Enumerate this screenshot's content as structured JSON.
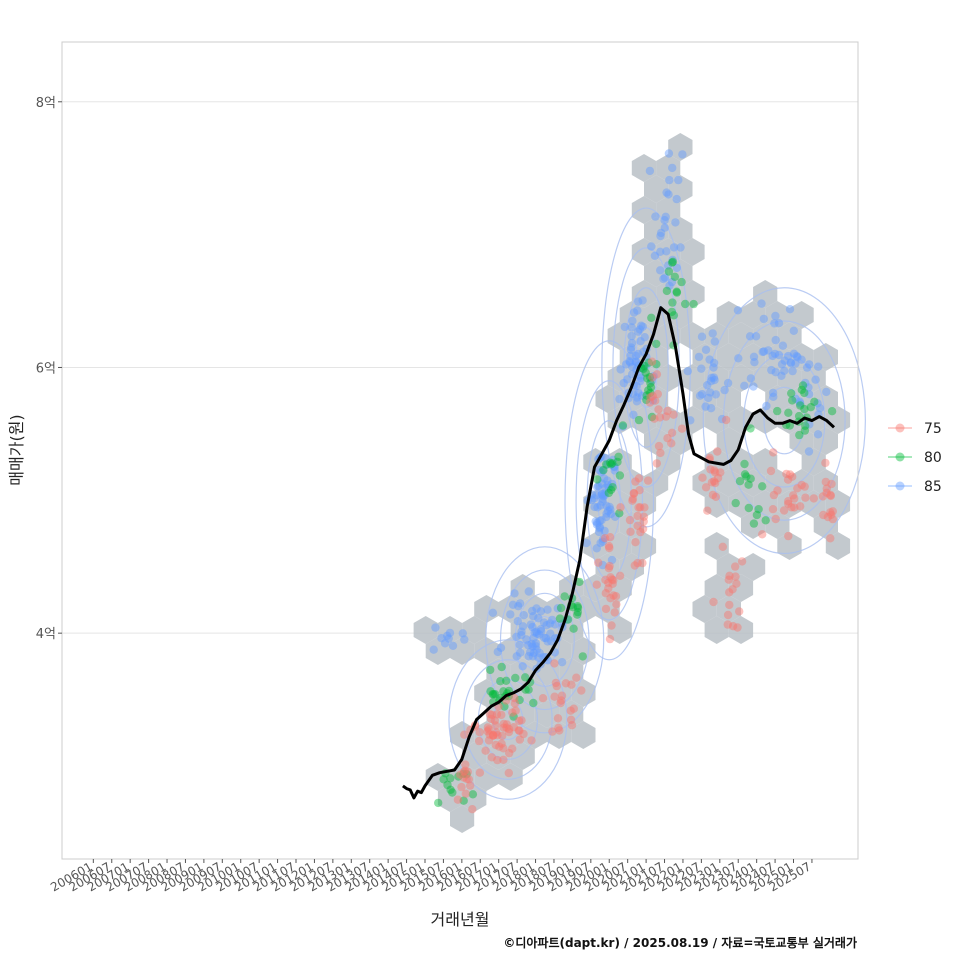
{
  "chart_data": {
    "type": "scatter",
    "title": "",
    "xlabel": "거래년월",
    "ylabel": "매매가(원)",
    "caption": "©디아파트(dapt.kr) / 2025.08.19 / 자료=국토교통부 실거래가",
    "x_ticks": [
      "200601",
      "200607",
      "200701",
      "200707",
      "200801",
      "200807",
      "200901",
      "200907",
      "201001",
      "201007",
      "201101",
      "201107",
      "201201",
      "201207",
      "201301",
      "201307",
      "201401",
      "201407",
      "201501",
      "201507",
      "201601",
      "201607",
      "201701",
      "201707",
      "201801",
      "201807",
      "201901",
      "201907",
      "202001",
      "202007",
      "202101",
      "202107",
      "202201",
      "202207",
      "202301",
      "202307",
      "202401",
      "202407",
      "202501",
      "202507"
    ],
    "y_ticks": [
      {
        "label": "4억",
        "value": 4
      },
      {
        "label": "6억",
        "value": 6
      },
      {
        "label": "8억",
        "value": 8
      }
    ],
    "ylim": [
      2.3,
      8.45
    ],
    "xlim_index": [
      -1.7,
      41.5
    ],
    "legend": {
      "position": "right",
      "entries": [
        {
          "label": "75",
          "color": "#F8766D"
        },
        {
          "label": "80",
          "color": "#00BA38"
        },
        {
          "label": "85",
          "color": "#619CFF"
        }
      ]
    },
    "colors": {
      "hex": "#b8bfc6",
      "contour": "#a9bff0",
      "median_line": "#000000",
      "grid": "#e5e5e5",
      "border": "#cccccc"
    },
    "median_trend": {
      "x": [
        16.8,
        17.0,
        17.2,
        17.4,
        17.6,
        17.8,
        18.0,
        18.4,
        18.8,
        19.2,
        19.6,
        20.0,
        20.4,
        20.8,
        21.2,
        21.6,
        22.0,
        22.4,
        22.8,
        23.2,
        23.6,
        24.0,
        24.4,
        24.8,
        25.2,
        25.6,
        26.0,
        26.4,
        26.8,
        27.2,
        27.6,
        28.0,
        28.4,
        28.8,
        29.2,
        29.6,
        30.0,
        30.4,
        30.8,
        31.2,
        31.6,
        32.0,
        32.3,
        32.6,
        33.0,
        33.4,
        33.8,
        34.2,
        34.6,
        35.0,
        35.4,
        35.8,
        36.2,
        36.6,
        37.0,
        37.4,
        37.8,
        38.2,
        38.6,
        39.0,
        39.4,
        39.8,
        40.2
      ],
      "y": [
        2.85,
        2.83,
        2.82,
        2.76,
        2.81,
        2.8,
        2.85,
        2.93,
        2.95,
        2.96,
        2.97,
        3.05,
        3.22,
        3.35,
        3.4,
        3.45,
        3.48,
        3.53,
        3.55,
        3.58,
        3.63,
        3.72,
        3.78,
        3.85,
        3.95,
        4.1,
        4.3,
        4.55,
        4.95,
        5.25,
        5.35,
        5.45,
        5.6,
        5.72,
        5.85,
        6.0,
        6.1,
        6.25,
        6.45,
        6.4,
        6.15,
        5.8,
        5.5,
        5.35,
        5.32,
        5.29,
        5.28,
        5.27,
        5.3,
        5.38,
        5.55,
        5.65,
        5.68,
        5.62,
        5.58,
        5.58,
        5.6,
        5.58,
        5.62,
        5.6,
        5.63,
        5.6,
        5.55
      ]
    },
    "series": [
      {
        "name": "75",
        "clusters": [
          {
            "x": 22.0,
            "y": 3.25,
            "sx": 1.4,
            "sy": 0.22,
            "n": 55
          },
          {
            "x": 20.6,
            "y": 2.85,
            "sx": 1.2,
            "sy": 0.15,
            "n": 14
          },
          {
            "x": 25.5,
            "y": 3.45,
            "sx": 0.8,
            "sy": 0.25,
            "n": 20
          },
          {
            "x": 28.0,
            "y": 4.35,
            "sx": 0.7,
            "sy": 0.25,
            "n": 25
          },
          {
            "x": 29.5,
            "y": 4.85,
            "sx": 0.7,
            "sy": 0.35,
            "n": 25
          },
          {
            "x": 30.8,
            "y": 5.7,
            "sx": 0.7,
            "sy": 0.35,
            "n": 20
          },
          {
            "x": 33.5,
            "y": 5.2,
            "sx": 0.9,
            "sy": 0.25,
            "n": 18
          },
          {
            "x": 34.8,
            "y": 4.3,
            "sx": 0.8,
            "sy": 0.3,
            "n": 15
          },
          {
            "x": 37.8,
            "y": 5.05,
            "sx": 1.2,
            "sy": 0.25,
            "n": 25
          },
          {
            "x": 40.0,
            "y": 5.0,
            "sx": 0.7,
            "sy": 0.2,
            "n": 15
          }
        ]
      },
      {
        "name": "80",
        "clusters": [
          {
            "x": 19.5,
            "y": 2.85,
            "sx": 1.2,
            "sy": 0.15,
            "n": 12
          },
          {
            "x": 22.5,
            "y": 3.55,
            "sx": 1.5,
            "sy": 0.12,
            "n": 25
          },
          {
            "x": 26.2,
            "y": 4.2,
            "sx": 0.6,
            "sy": 0.25,
            "n": 14
          },
          {
            "x": 28.2,
            "y": 5.15,
            "sx": 0.6,
            "sy": 0.3,
            "n": 14
          },
          {
            "x": 30.0,
            "y": 5.85,
            "sx": 0.6,
            "sy": 0.3,
            "n": 18
          },
          {
            "x": 31.6,
            "y": 6.55,
            "sx": 0.6,
            "sy": 0.3,
            "n": 14
          },
          {
            "x": 35.5,
            "y": 5.0,
            "sx": 1.0,
            "sy": 0.35,
            "n": 14
          },
          {
            "x": 38.6,
            "y": 5.7,
            "sx": 1.2,
            "sy": 0.25,
            "n": 20
          }
        ]
      },
      {
        "name": "85",
        "clusters": [
          {
            "x": 19.0,
            "y": 3.95,
            "sx": 1.0,
            "sy": 0.1,
            "n": 10
          },
          {
            "x": 24.0,
            "y": 4.0,
            "sx": 1.4,
            "sy": 0.2,
            "n": 70
          },
          {
            "x": 27.6,
            "y": 5.0,
            "sx": 0.6,
            "sy": 0.35,
            "n": 60
          },
          {
            "x": 29.3,
            "y": 6.0,
            "sx": 0.7,
            "sy": 0.4,
            "n": 55
          },
          {
            "x": 31.2,
            "y": 7.0,
            "sx": 0.7,
            "sy": 0.5,
            "n": 30
          },
          {
            "x": 33.3,
            "y": 5.9,
            "sx": 1.0,
            "sy": 0.35,
            "n": 25
          },
          {
            "x": 37.0,
            "y": 6.1,
            "sx": 1.5,
            "sy": 0.3,
            "n": 45
          },
          {
            "x": 39.0,
            "y": 5.8,
            "sx": 0.8,
            "sy": 0.3,
            "n": 15
          }
        ]
      }
    ]
  }
}
